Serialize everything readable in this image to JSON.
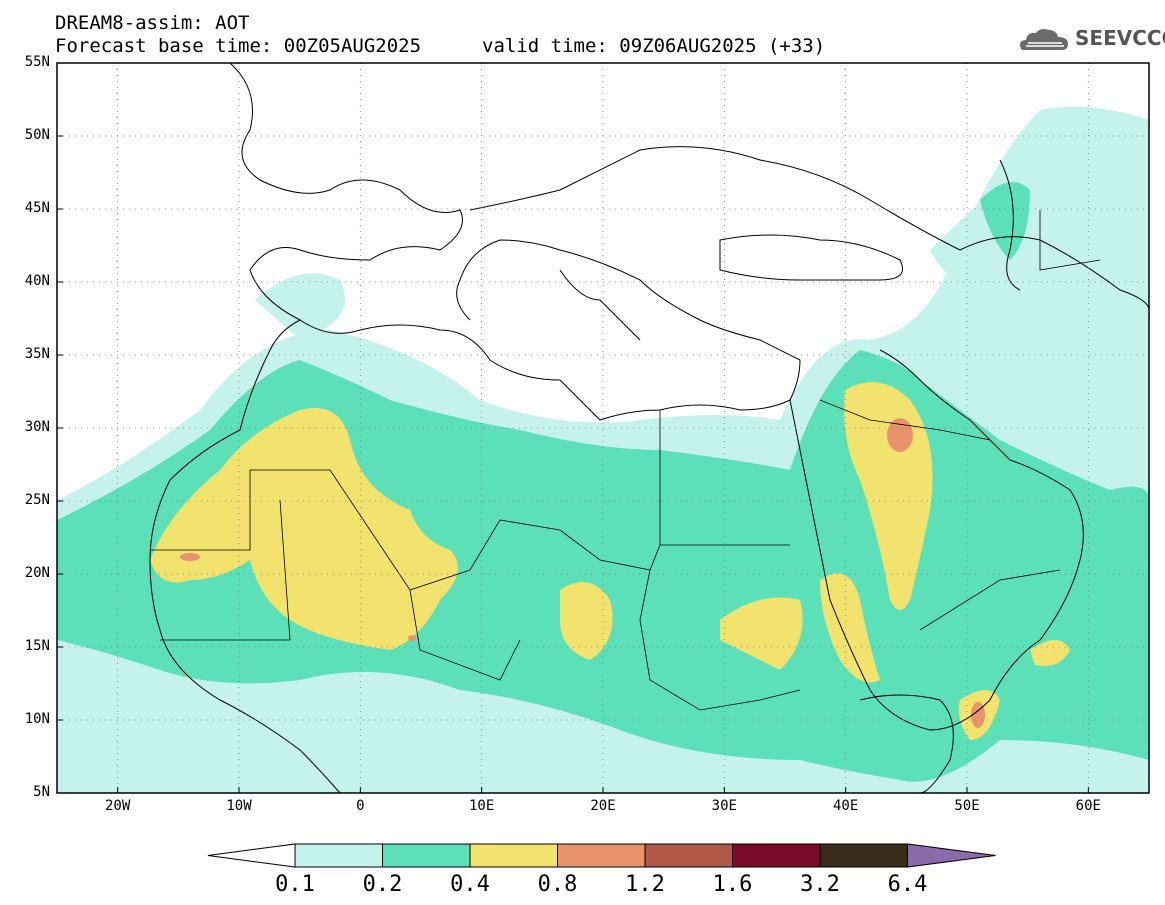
{
  "header": {
    "model_line": "DREAM8-assim: AOT",
    "base_time": "Forecast base time: 00Z05AUG2025",
    "valid_time": "valid time: 09Z06AUG2025 (+33)",
    "logo_text": "SEEVCCC",
    "logo_icon": "cloud-icon"
  },
  "axes": {
    "lat_labels": [
      "55N",
      "50N",
      "45N",
      "40N",
      "35N",
      "30N",
      "25N",
      "20N",
      "15N",
      "10N",
      "5N"
    ],
    "lon_labels": [
      "20W",
      "10W",
      "0",
      "10E",
      "20E",
      "30E",
      "40E",
      "50E",
      "60E"
    ]
  },
  "colorbar": {
    "labels": [
      "0.1",
      "0.2",
      "0.4",
      "0.8",
      "1.2",
      "1.6",
      "3.2",
      "6.4"
    ],
    "colors": [
      "#ffffff",
      "#c6f2ec",
      "#5ce0b8",
      "#f2e36e",
      "#e9936a",
      "#b0584a",
      "#7a0a2a",
      "#3a2a1a",
      "#8a6aa8"
    ]
  },
  "fields": {
    "c1": "#c6f2ec",
    "c2": "#5ce0b8",
    "c3": "#f2e36e",
    "c4": "#e9936a",
    "c5": "#b0584a"
  }
}
